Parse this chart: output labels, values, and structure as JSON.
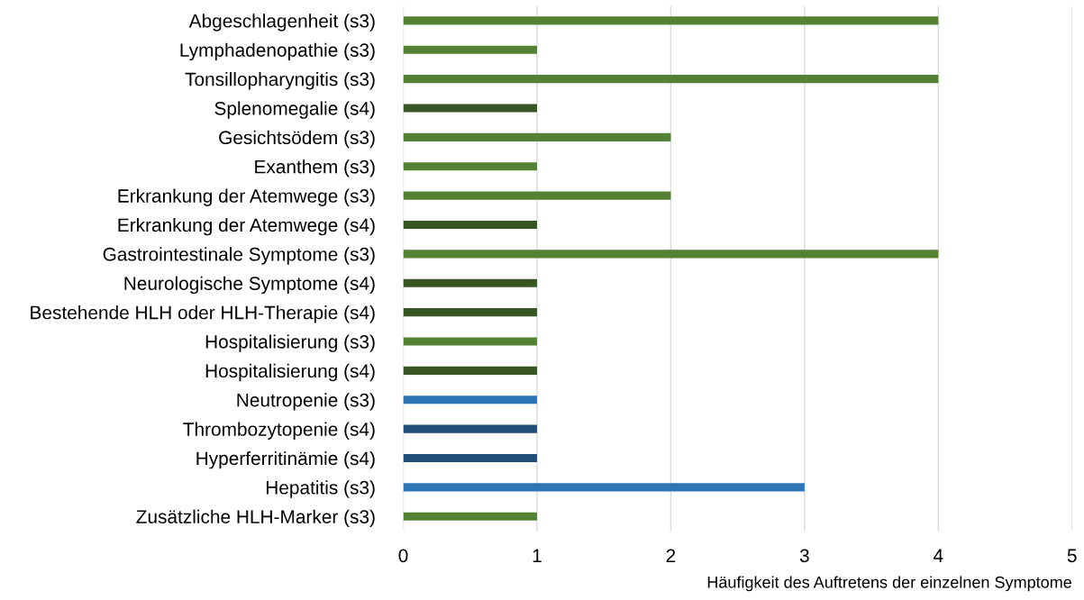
{
  "chart_data": {
    "type": "bar",
    "orientation": "horizontal",
    "xlabel": "Häufigkeit des Auftretens der einzelnen Symptome",
    "categories": [
      "Abgeschlagenheit (s3)",
      "Lymphadenopathie (s3)",
      "Tonsillopharyngitis (s3)",
      "Splenomegalie (s4)",
      "Gesichtsödem (s3)",
      "Exanthem (s3)",
      "Erkrankung der Atemwege (s3)",
      "Erkrankung der Atemwege (s4)",
      "Gastrointestinale Symptome (s3)",
      "Neurologische Symptome (s4)",
      "Bestehende HLH oder HLH-Therapie (s4)",
      "Hospitalisierung (s3)",
      "Hospitalisierung (s4)",
      "Neutropenie (s3)",
      "Thrombozytopenie (s4)",
      "Hyperferritinämie (s4)",
      "Hepatitis (s3)",
      "Zusätzliche HLH-Marker (s3)"
    ],
    "values": [
      4,
      1,
      4,
      1,
      2,
      1,
      2,
      1,
      4,
      1,
      1,
      1,
      1,
      1,
      1,
      1,
      3,
      1
    ],
    "colors": [
      "#548235",
      "#548235",
      "#548235",
      "#375623",
      "#548235",
      "#548235",
      "#548235",
      "#375623",
      "#548235",
      "#375623",
      "#375623",
      "#548235",
      "#375623",
      "#2e75b6",
      "#1f4e79",
      "#1f4e79",
      "#2e75b6",
      "#548235"
    ],
    "xlim": [
      0,
      5
    ],
    "xticks": [
      0,
      1,
      2,
      3,
      4,
      5
    ],
    "grid": "x"
  }
}
